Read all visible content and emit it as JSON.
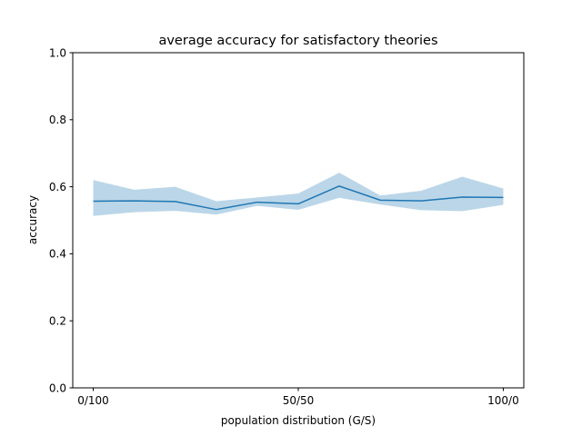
{
  "chart_data": {
    "type": "line",
    "title": "average accuracy for satisfactory theories",
    "xlabel": "population distribution (G/S)",
    "ylabel": "accuracy",
    "x": [
      0,
      10,
      20,
      30,
      40,
      50,
      60,
      70,
      80,
      90,
      100
    ],
    "xticks": [
      {
        "value": 0,
        "label": "0/100"
      },
      {
        "value": 50,
        "label": "50/50"
      },
      {
        "value": 100,
        "label": "100/0"
      }
    ],
    "xlim": [
      -5,
      105
    ],
    "ylim": [
      0,
      1
    ],
    "yticks": [
      "0.0",
      "0.2",
      "0.4",
      "0.6",
      "0.8",
      "1.0"
    ],
    "grid": false,
    "series": [
      {
        "values": [
          0.557,
          0.558,
          0.556,
          0.532,
          0.554,
          0.549,
          0.602,
          0.56,
          0.558,
          0.569,
          0.568
        ],
        "lower": [
          0.513,
          0.524,
          0.528,
          0.517,
          0.543,
          0.531,
          0.567,
          0.547,
          0.53,
          0.527,
          0.546
        ],
        "upper": [
          0.62,
          0.591,
          0.6,
          0.557,
          0.568,
          0.58,
          0.642,
          0.574,
          0.588,
          0.63,
          0.595
        ],
        "color": "#1f77b4",
        "band_color": "#1f77b4"
      }
    ]
  }
}
